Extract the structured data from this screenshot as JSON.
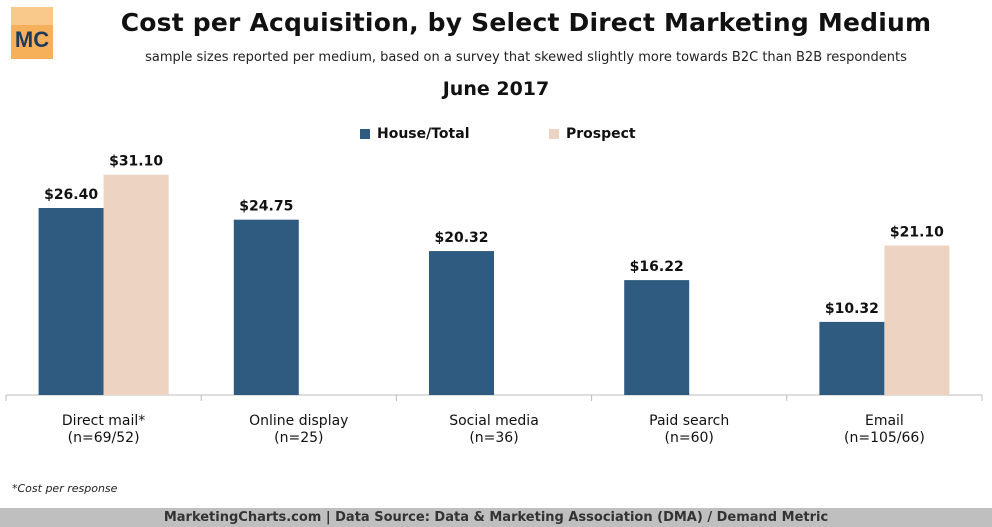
{
  "logo_text": "MC",
  "chart_data": {
    "type": "bar",
    "title": "Cost per Acquisition, by Select Direct Marketing Medium",
    "subtitle": "sample sizes reported per medium, based on a survey that skewed slightly more towards B2C than B2B respondents",
    "date": "June 2017",
    "categories": [
      "Direct mail*",
      "Online display",
      "Social media",
      "Paid search",
      "Email"
    ],
    "category_samples": [
      "(n=69/52)",
      "(n=25)",
      "(n=36)",
      "(n=60)",
      "(n=105/66)"
    ],
    "series": [
      {
        "name": "House/Total",
        "color": "#2e5b7f",
        "values": [
          26.4,
          24.75,
          20.32,
          16.22,
          10.32
        ],
        "labels": [
          "$26.40",
          "$24.75",
          "$20.32",
          "$16.22",
          "$10.32"
        ]
      },
      {
        "name": "Prospect",
        "color": "#edd3c2",
        "values": [
          31.1,
          null,
          null,
          null,
          21.1
        ],
        "labels": [
          "$31.10",
          null,
          null,
          null,
          "$21.10"
        ]
      }
    ],
    "ylim": [
      0,
      36
    ],
    "grid": false,
    "legend_position": "top-center"
  },
  "footnote": "*Cost per response",
  "footer": "MarketingCharts.com | Data Source: Data & Marketing Association (DMA) / Demand Metric"
}
